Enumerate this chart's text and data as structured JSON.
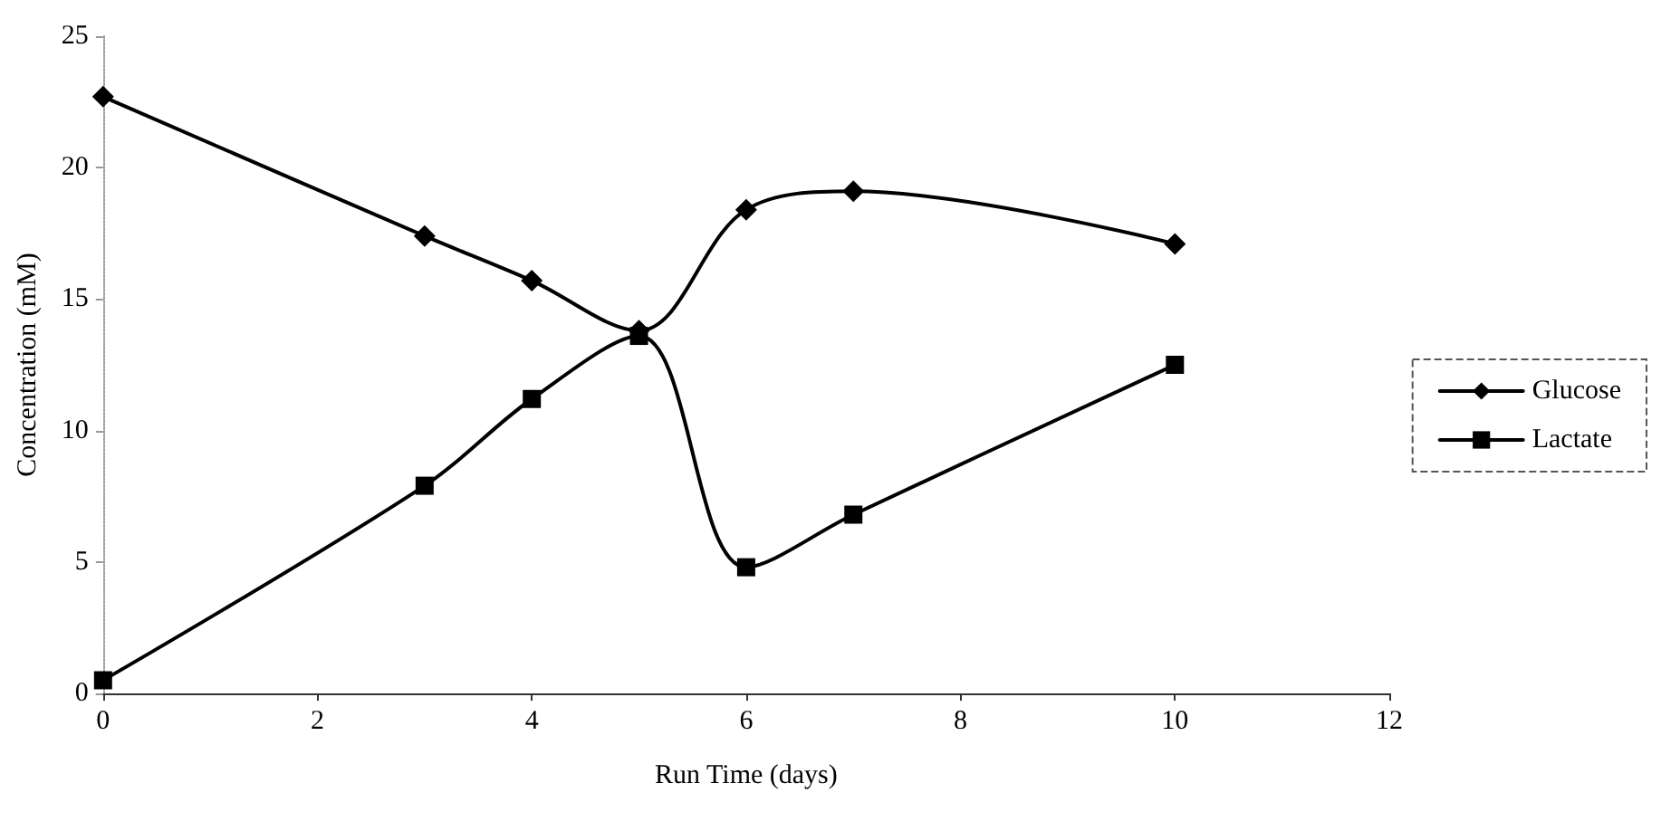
{
  "chart_data": {
    "type": "line",
    "xlabel": "Run Time (days)",
    "ylabel": "Concentration (mM)",
    "x": [
      0,
      3,
      4,
      5,
      6,
      7,
      10
    ],
    "series": [
      {
        "name": "Glucose",
        "color": "#000000",
        "marker": "diamond",
        "values": [
          22.7,
          17.4,
          15.7,
          13.8,
          18.4,
          19.1,
          17.1
        ]
      },
      {
        "name": "Lactate",
        "color": "#000000",
        "marker": "square",
        "values": [
          0.5,
          7.9,
          11.2,
          13.6,
          4.8,
          6.8,
          12.5
        ]
      }
    ],
    "xlim": [
      0,
      12
    ],
    "xticks": [
      0,
      2,
      4,
      6,
      8,
      10,
      12
    ],
    "ylim": [
      0,
      25
    ],
    "yticks": [
      0,
      5,
      10,
      15,
      20,
      25
    ],
    "grid": false,
    "legend": "right",
    "line_style": "solid"
  }
}
